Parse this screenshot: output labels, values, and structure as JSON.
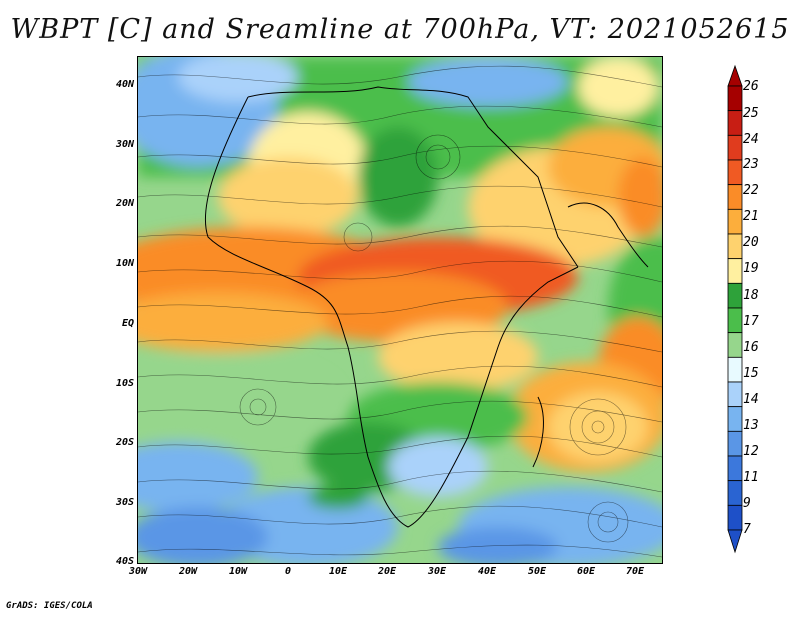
{
  "title": "WBPT [C] and Sreamline at 700hPa, VT: 2021052615",
  "footer": "GrADS: IGES/COLA",
  "lat_ticks": [
    "40N",
    "30N",
    "20N",
    "10N",
    "EQ",
    "10S",
    "20S",
    "30S",
    "40S"
  ],
  "lon_ticks": [
    "30W",
    "20W",
    "10W",
    "0",
    "10E",
    "20E",
    "30E",
    "40E",
    "50E",
    "60E",
    "70E"
  ],
  "colorbar": {
    "labels": [
      "26",
      "25",
      "24",
      "23",
      "22",
      "21",
      "20",
      "19",
      "18",
      "17",
      "16",
      "15",
      "14",
      "13",
      "12",
      "11",
      "9",
      "7"
    ],
    "colors": [
      "#a50000",
      "#c81e14",
      "#e03c1e",
      "#f05a23",
      "#fa8c28",
      "#fcae3c",
      "#fed26e",
      "#fff0a0",
      "#2ea23a",
      "#4bbe4b",
      "#96d68c",
      "#e8faff",
      "#aad2fa",
      "#78b4f0",
      "#5a96e6",
      "#3c78dc",
      "#2a64d2",
      "#1e50c8"
    ]
  }
}
